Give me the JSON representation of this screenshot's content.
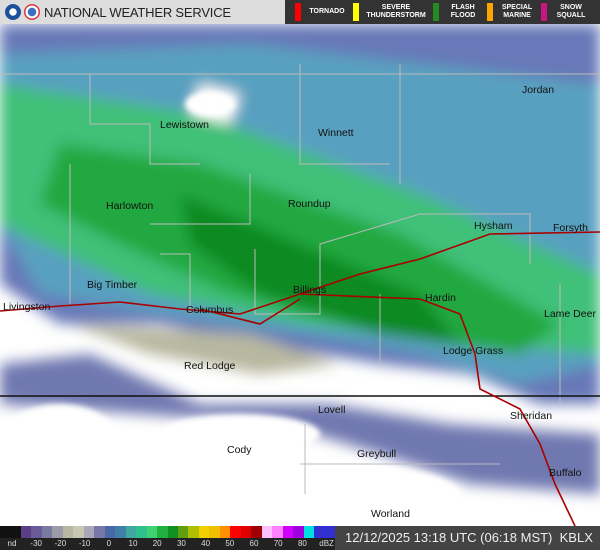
{
  "header": {
    "title": "NATIONAL WEATHER SERVICE",
    "warnings": [
      {
        "label": "TORNADO",
        "color": "#ff0000"
      },
      {
        "label": "SEVERE THUNDERSTORM",
        "color": "#ffff00"
      },
      {
        "label": "FLASH FLOOD",
        "color": "#228b22"
      },
      {
        "label": "SPECIAL MARINE",
        "color": "#ffa500"
      },
      {
        "label": "SNOW SQUALL",
        "color": "#c71585"
      }
    ]
  },
  "map": {
    "cities": [
      "Jordan",
      "Lewistown",
      "Winnett",
      "Harlowton",
      "Roundup",
      "Hysham",
      "Forsyth",
      "Big Timber",
      "Billings",
      "Livingston",
      "Columbus",
      "Hardin",
      "Lame Deer",
      "Lodge Grass",
      "Red Lodge",
      "Lovell",
      "Sheridan",
      "Cody",
      "Greybull",
      "Buffalo",
      "Worland"
    ]
  },
  "legend": {
    "ticks": [
      "nd",
      "-30",
      "-20",
      "-10",
      "0",
      "10",
      "20",
      "30",
      "40",
      "50",
      "60",
      "70",
      "80",
      "dBZ"
    ],
    "colors": [
      "#111",
      "#111",
      "#5a3f86",
      "#6b5a98",
      "#7a7aa0",
      "#9a9aa8",
      "#b8b8a0",
      "#c8c8b0",
      "#a8a8b8",
      "#7878a8",
      "#4868a8",
      "#4080a8",
      "#40a8a0",
      "#30c090",
      "#40d070",
      "#20b040",
      "#109020",
      "#60a010",
      "#b0c000",
      "#f0d000",
      "#f0c000",
      "#ff9000",
      "#ff0000",
      "#e00000",
      "#a00000",
      "#ffc0ff",
      "#ff80ff",
      "#d000ff",
      "#a000e0",
      "#00e0e0",
      "#3030d0",
      "#3030d0"
    ]
  },
  "status": {
    "timestamp": "12/12/2025 13:18 UTC (06:18 MST)",
    "station": "KBLX"
  }
}
